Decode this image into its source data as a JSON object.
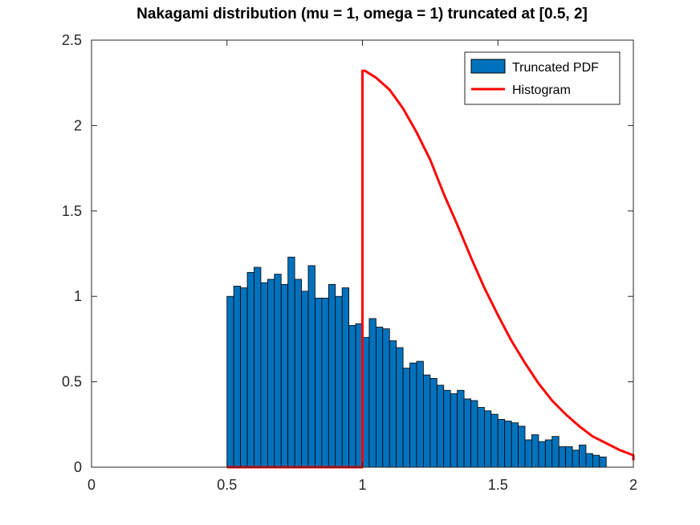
{
  "chart_data": {
    "type": "bar",
    "title": "Nakagami distribution (mu = 1, omega = 1) truncated at [0.5, 2]",
    "xlabel": "",
    "ylabel": "",
    "xlim": [
      0,
      2
    ],
    "ylim": [
      0,
      2.5
    ],
    "xticks": [
      0,
      0.5,
      1,
      1.5,
      2
    ],
    "yticks": [
      0,
      0.5,
      1,
      1.5,
      2,
      2.5
    ],
    "xtick_labels": [
      "0",
      "0.5",
      "1",
      "1.5",
      "2"
    ],
    "ytick_labels": [
      "0",
      "0.5",
      "1",
      "1.5",
      "2",
      "2.5"
    ],
    "grid": false,
    "legend_position": "top-right",
    "legend": [
      "Truncated PDF",
      "Histogram"
    ],
    "histogram": {
      "bin_edges_start": 0.5,
      "bin_width": 0.025,
      "values": [
        1.0,
        1.06,
        1.05,
        1.14,
        1.17,
        1.08,
        1.1,
        1.13,
        1.07,
        1.23,
        1.1,
        1.03,
        1.18,
        0.99,
        0.99,
        1.07,
        1.0,
        1.05,
        0.83,
        0.84,
        0.76,
        0.87,
        0.82,
        0.81,
        0.74,
        0.7,
        0.58,
        0.61,
        0.62,
        0.54,
        0.52,
        0.48,
        0.45,
        0.43,
        0.45,
        0.4,
        0.39,
        0.35,
        0.33,
        0.31,
        0.28,
        0.27,
        0.26,
        0.24,
        0.16,
        0.19,
        0.15,
        0.16,
        0.18,
        0.12,
        0.12,
        0.1,
        0.13,
        0.08,
        0.07,
        0.06
      ],
      "color": "#0072bd"
    },
    "series": [
      {
        "name": "Histogram",
        "color": "#ff0000",
        "x": [
          0.5,
          1.0,
          1.0,
          1.01,
          1.05,
          1.1,
          1.15,
          1.2,
          1.25,
          1.3,
          1.35,
          1.4,
          1.45,
          1.5,
          1.55,
          1.6,
          1.65,
          1.7,
          1.75,
          1.8,
          1.85,
          1.9,
          1.95,
          2.0,
          2.0
        ],
        "y": [
          0.0,
          0.0,
          2.32,
          2.32,
          2.28,
          2.21,
          2.1,
          1.96,
          1.8,
          1.6,
          1.42,
          1.23,
          1.05,
          0.89,
          0.74,
          0.61,
          0.49,
          0.39,
          0.31,
          0.24,
          0.18,
          0.14,
          0.1,
          0.07,
          0.04
        ]
      }
    ]
  }
}
